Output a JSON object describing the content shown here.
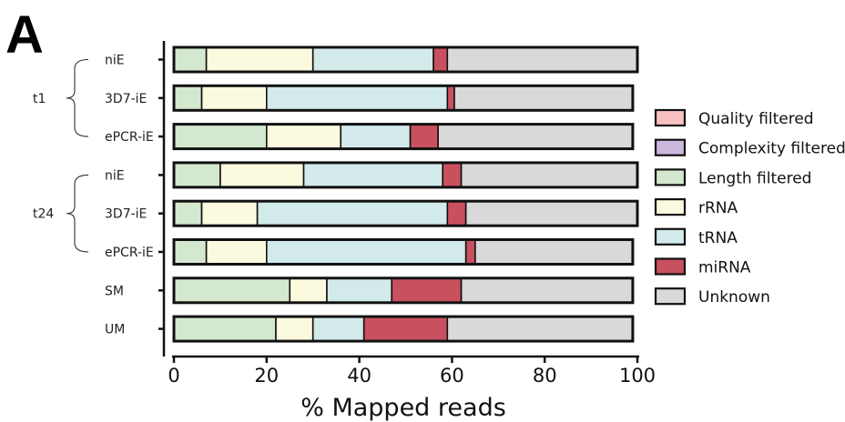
{
  "panel_label": "A",
  "chart_data": {
    "type": "bar",
    "orientation": "horizontal",
    "stacked": true,
    "xlabel": "% Mapped reads",
    "xlim": [
      0,
      100
    ],
    "xticks": [
      0,
      20,
      40,
      60,
      80,
      100
    ],
    "categories": [
      "niE",
      "3D7-iE",
      "ePCR-iE",
      "niE",
      "3D7-iE",
      "ePCR-iE",
      "SM",
      "UM"
    ],
    "groups": [
      {
        "label": "t1",
        "members": [
          0,
          1,
          2
        ]
      },
      {
        "label": "t24",
        "members": [
          3,
          4,
          5
        ]
      }
    ],
    "series": [
      {
        "name": "Quality filtered",
        "color": "#f7c1c1",
        "values": [
          0,
          0,
          0,
          0,
          0,
          0,
          0,
          0
        ]
      },
      {
        "name": "Complexity filtered",
        "color": "#cbb8dd",
        "values": [
          0,
          0,
          0,
          0,
          0,
          0,
          0,
          0
        ]
      },
      {
        "name": "Length filtered",
        "color": "#d4e8cf",
        "values": [
          7,
          6,
          20,
          10,
          6,
          7,
          25,
          22
        ]
      },
      {
        "name": "rRNA",
        "color": "#fcfade",
        "values": [
          23,
          14,
          16,
          18,
          12,
          13,
          8,
          8
        ]
      },
      {
        "name": "tRNA",
        "color": "#d3eaea",
        "values": [
          26,
          39,
          15,
          30,
          41,
          43,
          14,
          11
        ]
      },
      {
        "name": "miRNA",
        "color": "#c9505f",
        "values": [
          3,
          1.5,
          6,
          4,
          4,
          2,
          15,
          18
        ]
      },
      {
        "name": "Unknown",
        "color": "#d9d9d9",
        "values": [
          41,
          38.5,
          42,
          38,
          37,
          34,
          37,
          40
        ]
      }
    ],
    "legend_position": "right",
    "grid": false
  }
}
